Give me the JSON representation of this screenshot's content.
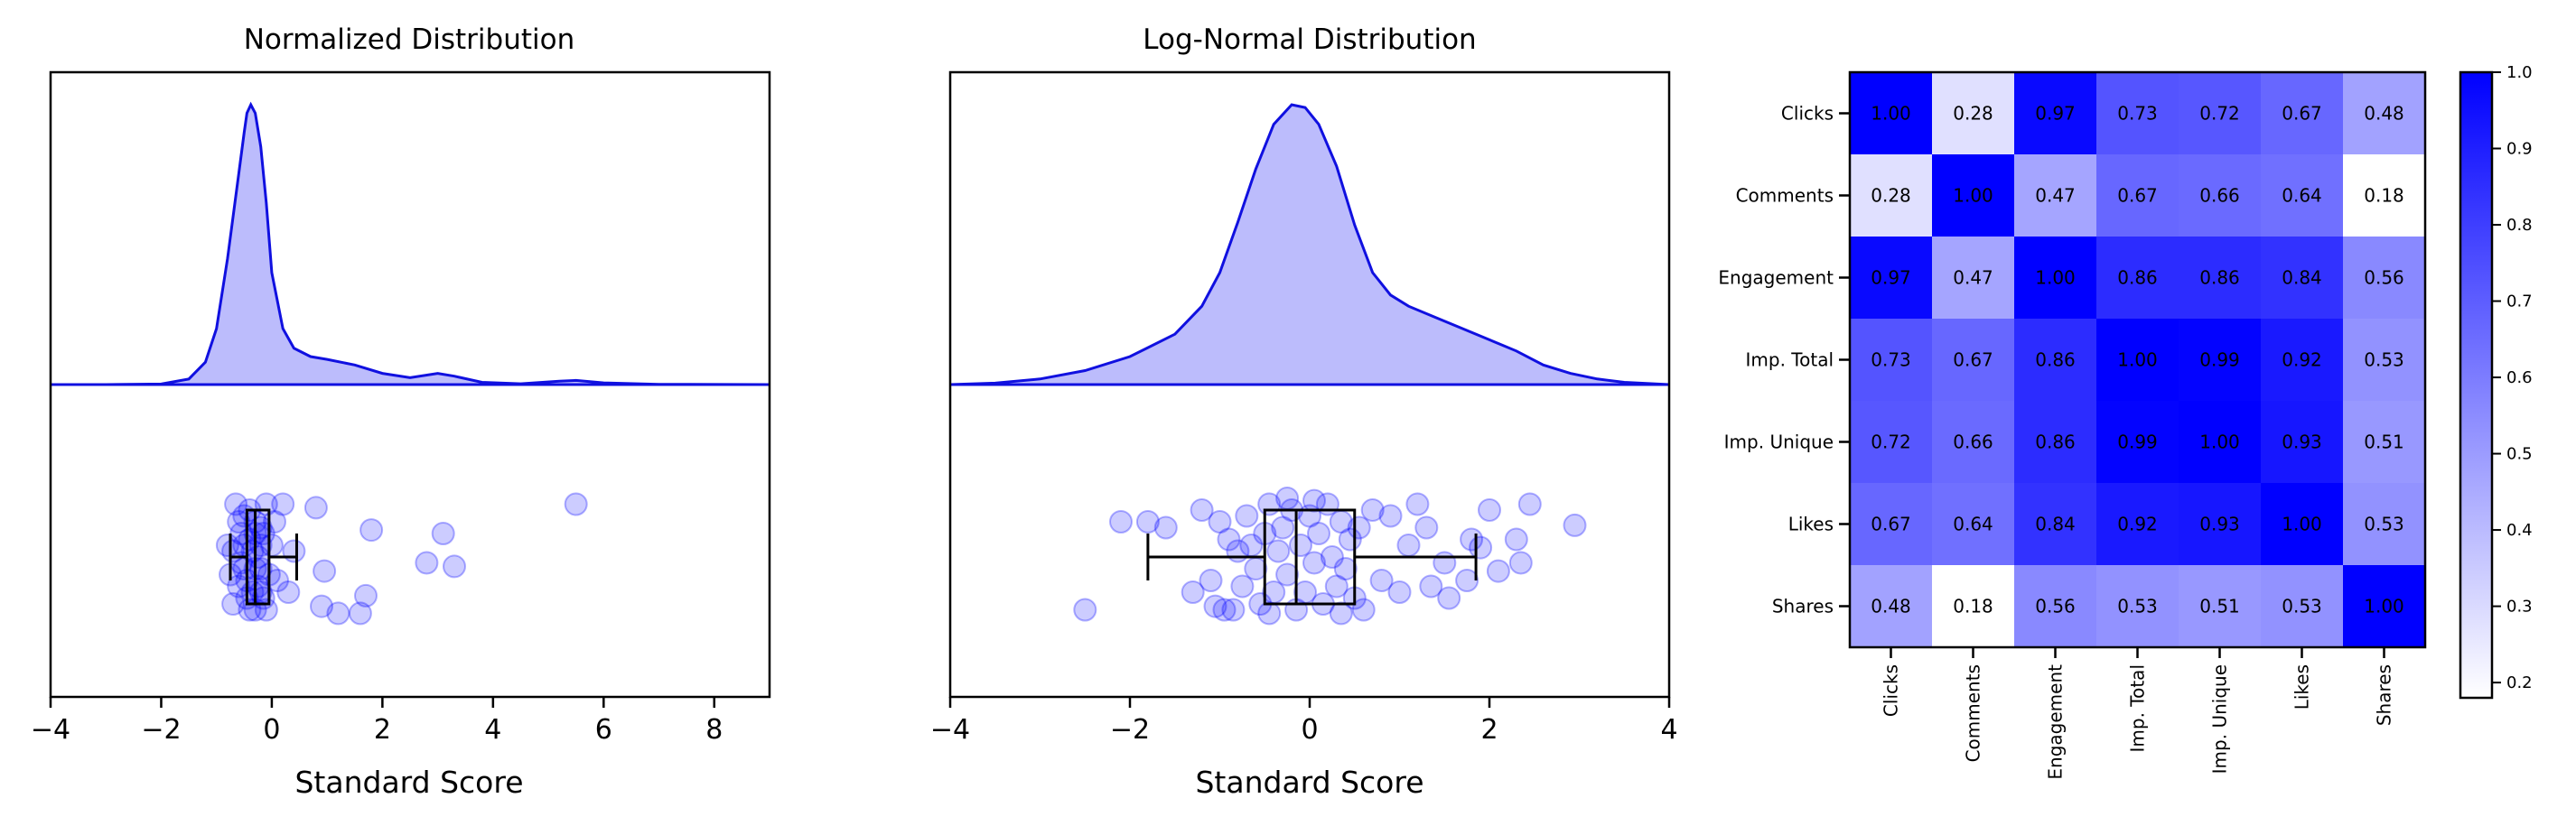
{
  "colors": {
    "accent": "#0000ff",
    "fill": "#bcbcfc",
    "line": "#1010e0"
  },
  "chart_data": [
    {
      "type": "area",
      "title": "Normalized Distribution",
      "xlabel": "Standard Score",
      "xlim": [
        -4,
        9
      ],
      "xticks": [
        -4,
        -2,
        0,
        2,
        4,
        6,
        8
      ],
      "xtick_labels": [
        "−4",
        "−2",
        "0",
        "2",
        "4",
        "6",
        "8"
      ],
      "density": [
        [
          -4,
          0
        ],
        [
          -3,
          0
        ],
        [
          -2,
          0.002
        ],
        [
          -1.5,
          0.02
        ],
        [
          -1.2,
          0.08
        ],
        [
          -1,
          0.2
        ],
        [
          -0.8,
          0.45
        ],
        [
          -0.6,
          0.75
        ],
        [
          -0.5,
          0.9
        ],
        [
          -0.45,
          0.97
        ],
        [
          -0.38,
          1
        ],
        [
          -0.3,
          0.97
        ],
        [
          -0.2,
          0.85
        ],
        [
          -0.1,
          0.65
        ],
        [
          0,
          0.4
        ],
        [
          0.2,
          0.2
        ],
        [
          0.4,
          0.13
        ],
        [
          0.7,
          0.1
        ],
        [
          1,
          0.09
        ],
        [
          1.5,
          0.07
        ],
        [
          2,
          0.04
        ],
        [
          2.5,
          0.025
        ],
        [
          3,
          0.04
        ],
        [
          3.3,
          0.03
        ],
        [
          3.8,
          0.008
        ],
        [
          4.5,
          0.003
        ],
        [
          5.2,
          0.012
        ],
        [
          5.5,
          0.015
        ],
        [
          6,
          0.006
        ],
        [
          7,
          0.001
        ],
        [
          9,
          0
        ]
      ],
      "boxplot": {
        "whisker_low": -0.75,
        "q1": -0.45,
        "median": -0.3,
        "q3": -0.05,
        "whisker_high": 0.45
      },
      "points": [
        [
          -0.7,
          0.05
        ],
        [
          -0.6,
          0.3
        ],
        [
          -0.5,
          0.1
        ],
        [
          -0.45,
          -0.2
        ],
        [
          -0.4,
          0.4
        ],
        [
          -0.35,
          -0.3
        ],
        [
          -0.3,
          0.2
        ],
        [
          -0.3,
          -0.45
        ],
        [
          -0.25,
          0
        ],
        [
          -0.2,
          0.25
        ],
        [
          -0.2,
          -0.1
        ],
        [
          -0.15,
          -0.35
        ],
        [
          -0.5,
          -0.1
        ],
        [
          -0.55,
          0.2
        ],
        [
          -0.6,
          -0.25
        ],
        [
          -0.7,
          -0.4
        ],
        [
          -0.8,
          0.1
        ],
        [
          -0.75,
          -0.15
        ],
        [
          -0.65,
          0.45
        ],
        [
          -0.4,
          -0.45
        ],
        [
          -0.35,
          0.05
        ],
        [
          -0.25,
          -0.25
        ],
        [
          -0.1,
          0.45
        ],
        [
          0,
          0.1
        ],
        [
          0.1,
          -0.2
        ],
        [
          0.2,
          0.45
        ],
        [
          0.3,
          -0.3
        ],
        [
          0.4,
          0.05
        ],
        [
          -0.1,
          -0.45
        ],
        [
          -0.2,
          0.1
        ],
        [
          -0.3,
          -0.1
        ],
        [
          -0.5,
          0.35
        ],
        [
          -0.4,
          0.15
        ],
        [
          -0.3,
          0.3
        ],
        [
          -0.45,
          -0.35
        ],
        [
          -0.55,
          -0.05
        ],
        [
          -0.2,
          -0.3
        ],
        [
          0.05,
          0.3
        ],
        [
          -0.05,
          -0.15
        ],
        [
          -0.15,
          0.2
        ],
        [
          0.8,
          0.42
        ],
        [
          1.8,
          0.23
        ],
        [
          0.95,
          -0.12
        ],
        [
          1.7,
          -0.33
        ],
        [
          0.9,
          -0.42
        ],
        [
          1.2,
          -0.48
        ],
        [
          1.6,
          -0.48
        ],
        [
          2.8,
          -0.05
        ],
        [
          3.1,
          0.2
        ],
        [
          3.3,
          -0.08
        ],
        [
          5.5,
          0.45
        ]
      ]
    },
    {
      "type": "area",
      "title": "Log-Normal Distribution",
      "xlabel": "Standard Score",
      "xlim": [
        -4,
        4
      ],
      "xticks": [
        -4,
        -2,
        0,
        2,
        4
      ],
      "xtick_labels": [
        "−4",
        "−2",
        "0",
        "2",
        "4"
      ],
      "density": [
        [
          -4,
          0
        ],
        [
          -3.5,
          0.005
        ],
        [
          -3,
          0.02
        ],
        [
          -2.5,
          0.05
        ],
        [
          -2,
          0.1
        ],
        [
          -1.5,
          0.18
        ],
        [
          -1.2,
          0.28
        ],
        [
          -1,
          0.4
        ],
        [
          -0.8,
          0.58
        ],
        [
          -0.6,
          0.77
        ],
        [
          -0.4,
          0.93
        ],
        [
          -0.2,
          1
        ],
        [
          -0.05,
          0.99
        ],
        [
          0.1,
          0.93
        ],
        [
          0.3,
          0.78
        ],
        [
          0.5,
          0.57
        ],
        [
          0.7,
          0.4
        ],
        [
          0.9,
          0.32
        ],
        [
          1.1,
          0.28
        ],
        [
          1.4,
          0.24
        ],
        [
          1.7,
          0.2
        ],
        [
          2,
          0.16
        ],
        [
          2.3,
          0.12
        ],
        [
          2.6,
          0.07
        ],
        [
          2.9,
          0.04
        ],
        [
          3.2,
          0.02
        ],
        [
          3.5,
          0.008
        ],
        [
          4,
          0
        ]
      ],
      "boxplot": {
        "whisker_low": -1.8,
        "q1": -0.5,
        "median": -0.15,
        "q3": 0.5,
        "whisker_high": 1.85
      },
      "points": [
        [
          -2.5,
          -0.45
        ],
        [
          -2.1,
          0.3
        ],
        [
          -1.8,
          0.3
        ],
        [
          -1.6,
          0.25
        ],
        [
          -1.3,
          -0.3
        ],
        [
          -1.2,
          0.4
        ],
        [
          -1.1,
          -0.2
        ],
        [
          -1,
          0.3
        ],
        [
          -0.95,
          -0.45
        ],
        [
          -0.9,
          0.15
        ],
        [
          -0.8,
          0.05
        ],
        [
          -0.7,
          0.35
        ],
        [
          -0.6,
          -0.1
        ],
        [
          -0.55,
          -0.4
        ],
        [
          -0.5,
          0.2
        ],
        [
          -0.45,
          0.45
        ],
        [
          -0.4,
          -0.3
        ],
        [
          -0.35,
          0.05
        ],
        [
          -0.3,
          0.25
        ],
        [
          -0.25,
          -0.15
        ],
        [
          -0.2,
          0.4
        ],
        [
          -0.15,
          -0.45
        ],
        [
          -0.1,
          0.1
        ],
        [
          -0.05,
          -0.3
        ],
        [
          0,
          0.35
        ],
        [
          0.05,
          -0.05
        ],
        [
          0.1,
          0.2
        ],
        [
          0.15,
          -0.4
        ],
        [
          0.2,
          0.45
        ],
        [
          0.25,
          0
        ],
        [
          0.3,
          -0.25
        ],
        [
          0.35,
          0.3
        ],
        [
          0.4,
          -0.1
        ],
        [
          0.45,
          0.15
        ],
        [
          0.5,
          -0.35
        ],
        [
          0.55,
          0.25
        ],
        [
          0.6,
          -0.45
        ],
        [
          0.7,
          0.4
        ],
        [
          0.8,
          -0.2
        ],
        [
          0.9,
          0.35
        ],
        [
          1,
          -0.3
        ],
        [
          1.1,
          0.1
        ],
        [
          1.2,
          0.45
        ],
        [
          1.3,
          0.25
        ],
        [
          1.35,
          -0.25
        ],
        [
          1.5,
          -0.05
        ],
        [
          1.55,
          -0.35
        ],
        [
          1.75,
          -0.2
        ],
        [
          1.8,
          0.15
        ],
        [
          1.9,
          0.08
        ],
        [
          2,
          0.4
        ],
        [
          2.1,
          -0.12
        ],
        [
          2.3,
          0.15
        ],
        [
          2.35,
          -0.05
        ],
        [
          2.45,
          0.45
        ],
        [
          2.95,
          0.27
        ],
        [
          -0.75,
          -0.25
        ],
        [
          -0.65,
          0.1
        ],
        [
          -0.25,
          0.5
        ],
        [
          0.05,
          0.48
        ],
        [
          -0.45,
          -0.48
        ],
        [
          0.35,
          -0.48
        ],
        [
          -1.05,
          -0.42
        ],
        [
          -0.85,
          -0.45
        ]
      ]
    },
    {
      "type": "heatmap",
      "labels": [
        "Clicks",
        "Comments",
        "Engagement",
        "Imp. Total",
        "Imp. Unique",
        "Likes",
        "Shares"
      ],
      "values": [
        [
          1.0,
          0.28,
          0.97,
          0.73,
          0.72,
          0.67,
          0.48
        ],
        [
          0.28,
          1.0,
          0.47,
          0.67,
          0.66,
          0.64,
          0.18
        ],
        [
          0.97,
          0.47,
          1.0,
          0.86,
          0.86,
          0.84,
          0.56
        ],
        [
          0.73,
          0.67,
          0.86,
          1.0,
          0.99,
          0.92,
          0.53
        ],
        [
          0.72,
          0.66,
          0.86,
          0.99,
          1.0,
          0.93,
          0.51
        ],
        [
          0.67,
          0.64,
          0.84,
          0.92,
          0.93,
          1.0,
          0.53
        ],
        [
          0.48,
          0.18,
          0.56,
          0.53,
          0.51,
          0.53,
          1.0
        ]
      ],
      "value_labels": [
        [
          "1.00",
          "0.28",
          "0.97",
          "0.73",
          "0.72",
          "0.67",
          "0.48"
        ],
        [
          "0.28",
          "1.00",
          "0.47",
          "0.67",
          "0.66",
          "0.64",
          "0.18"
        ],
        [
          "0.97",
          "0.47",
          "1.00",
          "0.86",
          "0.86",
          "0.84",
          "0.56"
        ],
        [
          "0.73",
          "0.67",
          "0.86",
          "1.00",
          "0.99",
          "0.92",
          "0.53"
        ],
        [
          "0.72",
          "0.66",
          "0.86",
          "0.99",
          "1.00",
          "0.93",
          "0.51"
        ],
        [
          "0.67",
          "0.64",
          "0.84",
          "0.92",
          "0.93",
          "1.00",
          "0.53"
        ],
        [
          "0.48",
          "0.18",
          "0.56",
          "0.53",
          "0.51",
          "0.53",
          "1.00"
        ]
      ],
      "colorbar": {
        "range": [
          0.18,
          1.0
        ],
        "ticks": [
          0.2,
          0.3,
          0.4,
          0.5,
          0.6,
          0.7,
          0.8,
          0.9,
          1.0
        ],
        "tick_labels": [
          "0.2",
          "0.3",
          "0.4",
          "0.5",
          "0.6",
          "0.7",
          "0.8",
          "0.9",
          "1.0"
        ]
      },
      "colormap": [
        "#ffffff",
        "#0000ff"
      ]
    }
  ]
}
